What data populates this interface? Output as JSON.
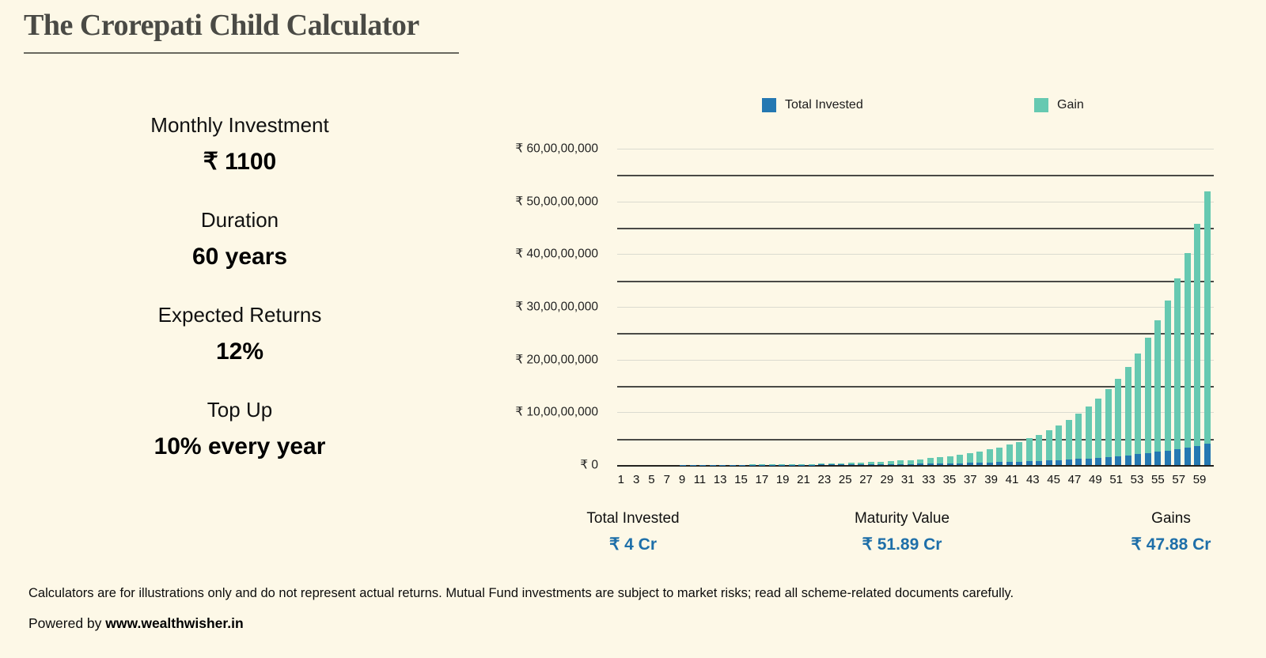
{
  "page": {
    "title": "The Crorepati Child Calculator"
  },
  "params": {
    "items": [
      {
        "label": "Monthly Investment",
        "value": "₹ 1100"
      },
      {
        "label": "Duration",
        "value": "60 years"
      },
      {
        "label": "Expected Returns",
        "value": "12%"
      },
      {
        "label": "Top Up",
        "value": "10% every year"
      }
    ]
  },
  "colors": {
    "background": "#FDF8E7",
    "invested_blue": "#2478B2",
    "gain_teal": "#66C9B1",
    "summary_value_blue": "#1E6FA9",
    "grid_light": "#DBDBD0",
    "grid_dark": "#4A4A46"
  },
  "chart_data": {
    "type": "bar",
    "stacked": true,
    "legend_position": "top",
    "grid": true,
    "units": "values in ₹ crore (1 crore = 10,000,000)",
    "ylim": [
      0,
      60
    ],
    "ytick": [
      {
        "value": 60,
        "label": "₹ 60,00,00,000"
      },
      {
        "value": 50,
        "label": "₹ 50,00,00,000"
      },
      {
        "value": 40,
        "label": "₹ 40,00,00,000"
      },
      {
        "value": 30,
        "label": "₹ 30,00,00,000"
      },
      {
        "value": 20,
        "label": "₹ 20,00,00,000"
      },
      {
        "value": 10,
        "label": "₹ 10,00,00,000"
      },
      {
        "value": 0,
        "label": "₹ 0"
      }
    ],
    "x": [
      1,
      2,
      3,
      4,
      5,
      6,
      7,
      8,
      9,
      10,
      11,
      12,
      13,
      14,
      15,
      16,
      17,
      18,
      19,
      20,
      21,
      22,
      23,
      24,
      25,
      26,
      27,
      28,
      29,
      30,
      31,
      32,
      33,
      34,
      35,
      36,
      37,
      38,
      39,
      40,
      41,
      42,
      43,
      44,
      45,
      46,
      47,
      48,
      49,
      50,
      51,
      52,
      53,
      54,
      55,
      56,
      57,
      58,
      59,
      60
    ],
    "xtick_labels": [
      1,
      3,
      5,
      7,
      9,
      11,
      13,
      15,
      17,
      19,
      21,
      23,
      25,
      27,
      29,
      31,
      33,
      35,
      37,
      39,
      41,
      43,
      45,
      47,
      49,
      51,
      53,
      55,
      57,
      59
    ],
    "series": [
      {
        "name": "Total Invested",
        "color": "#2478B2",
        "values": [
          0.0013,
          0.0028,
          0.0044,
          0.0061,
          0.0081,
          0.0102,
          0.0125,
          0.0151,
          0.0179,
          0.021,
          0.0245,
          0.0282,
          0.0324,
          0.0369,
          0.0419,
          0.0475,
          0.0535,
          0.0602,
          0.0675,
          0.0756,
          0.0845,
          0.0943,
          0.105,
          0.1168,
          0.1298,
          0.1441,
          0.1599,
          0.1772,
          0.1962,
          0.2171,
          0.2402,
          0.2655,
          0.2934,
          0.324,
          0.3578,
          0.3948,
          0.4357,
          0.4805,
          0.5299,
          0.5842,
          0.644,
          0.7097,
          0.782,
          0.8615,
          0.949,
          1.0452,
          1.151,
          1.2674,
          1.3955,
          1.5364,
          1.6913,
          1.8618,
          2.0493,
          2.2555,
          2.4824,
          2.7319,
          3.0065,
          3.3084,
          3.6406,
          4.006
        ]
      },
      {
        "name": "Gain",
        "color": "#66C9B1",
        "values": [
          0.0001,
          0.0003,
          0.0008,
          0.0017,
          0.0027,
          0.0043,
          0.0063,
          0.0088,
          0.0121,
          0.0161,
          0.021,
          0.0271,
          0.0343,
          0.0431,
          0.0536,
          0.0661,
          0.0809,
          0.0984,
          0.119,
          0.1432,
          0.1715,
          0.2046,
          0.2433,
          0.2882,
          0.3405,
          0.4011,
          0.4713,
          0.5525,
          0.6464,
          0.7546,
          0.8794,
          1.0231,
          1.1885,
          1.3784,
          1.5967,
          1.847,
          2.1341,
          2.4631,
          2.8398,
          3.2709,
          3.7639,
          4.3274,
          4.9711,
          5.7061,
          6.545,
          7.5019,
          8.593,
          9.8366,
          11.2535,
          12.8671,
          14.7043,
          16.795,
          19.1737,
          21.8794,
          24.9555,
          28.4519,
          32.4253,
          36.9392,
          42.0659,
          47.8874
        ]
      }
    ]
  },
  "legend": [
    {
      "label": "Total Invested",
      "color": "#2478B2"
    },
    {
      "label": "Gain",
      "color": "#66C9B1"
    }
  ],
  "summary": {
    "items": [
      {
        "label": "Total Invested",
        "value": "₹ 4 Cr"
      },
      {
        "label": "Maturity Value",
        "value": "₹ 51.89 Cr"
      },
      {
        "label": "Gains",
        "value": "₹ 47.88 Cr"
      }
    ]
  },
  "footer": {
    "disclaimer": "Calculators are for illustrations only and do not represent actual returns. Mutual Fund investments are subject to market risks; read all scheme-related documents carefully.",
    "powered_by_prefix": "Powered by ",
    "powered_by_site": "www.wealthwisher.in"
  }
}
